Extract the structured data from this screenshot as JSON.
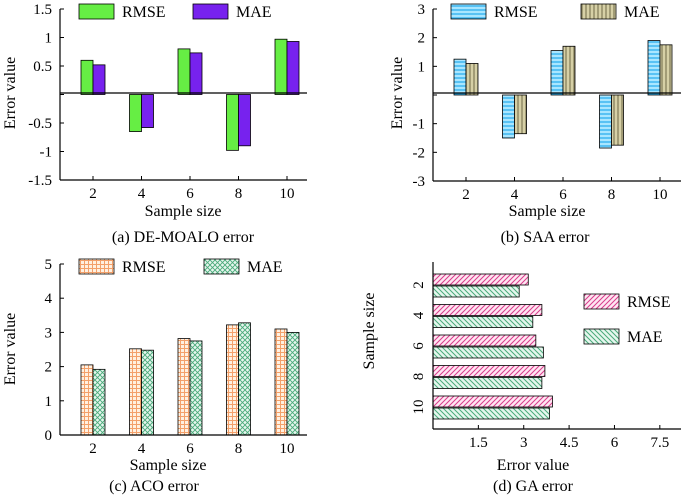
{
  "chart_data": [
    {
      "type": "bar",
      "caption": "(a) DE-MOALO error",
      "xlabel": "Sample size",
      "ylabel": "Error value",
      "categories": [
        "2",
        "4",
        "6",
        "8",
        "10"
      ],
      "ylim": [
        -1.5,
        1.5
      ],
      "yticks": [
        "1.5",
        "1",
        "0.5",
        "",
        "-0.5",
        "-1",
        "-1.5"
      ],
      "series": [
        {
          "name": "RMSE",
          "values": [
            0.6,
            -0.65,
            0.8,
            -0.98,
            0.97
          ]
        },
        {
          "name": "MAE",
          "values": [
            0.52,
            -0.58,
            0.73,
            -0.9,
            0.93
          ]
        }
      ],
      "legend": "top"
    },
    {
      "type": "bar",
      "caption": "(b) SAA error",
      "xlabel": "Sample size",
      "ylabel": "Error value",
      "categories": [
        "2",
        "4",
        "6",
        "8",
        "10"
      ],
      "ylim": [
        -3,
        3
      ],
      "yticks": [
        "3",
        "2",
        "1",
        "",
        "-1",
        "-2",
        "-3"
      ],
      "series": [
        {
          "name": "RMSE",
          "values": [
            1.25,
            -1.5,
            1.55,
            -1.85,
            1.9
          ]
        },
        {
          "name": "MAE",
          "values": [
            1.1,
            -1.35,
            1.7,
            -1.75,
            1.75
          ]
        }
      ],
      "legend": "top"
    },
    {
      "type": "bar",
      "caption": "(c) ACO error",
      "xlabel": "Sample size",
      "ylabel": "Error value",
      "categories": [
        "2",
        "4",
        "6",
        "8",
        "10"
      ],
      "ylim": [
        0,
        5
      ],
      "yticks": [
        "5",
        "4",
        "3",
        "2",
        "1",
        "0"
      ],
      "series": [
        {
          "name": "RMSE",
          "values": [
            2.05,
            2.52,
            2.82,
            3.22,
            3.1
          ]
        },
        {
          "name": "MAE",
          "values": [
            1.92,
            2.48,
            2.75,
            3.28,
            3.0
          ]
        }
      ],
      "legend": "top"
    },
    {
      "type": "bar",
      "orientation": "horizontal",
      "caption": "(d) GA error",
      "xlabel": "Error value",
      "ylabel": "Sample size",
      "categories": [
        "2",
        "4",
        "6",
        "8",
        "10"
      ],
      "xlim": [
        0,
        8.2
      ],
      "xticks": [
        "1.5",
        "3",
        "4.5",
        "6",
        "7.5"
      ],
      "series": [
        {
          "name": "RMSE",
          "values": [
            3.15,
            3.6,
            3.4,
            3.7,
            3.95
          ]
        },
        {
          "name": "MAE",
          "values": [
            2.85,
            3.3,
            3.65,
            3.6,
            3.85
          ]
        }
      ],
      "legend": "right"
    }
  ],
  "colors": {
    "a_rmse": "#66ee44",
    "a_mae": "#7722ee",
    "b_rmse_fill": "#a9e6ff",
    "b_rmse_line": "#22aaee",
    "b_mae_fill": "#d6d0a6",
    "b_mae_line": "#7f7a55",
    "c_rmse_fill": "#fff0e0",
    "c_rmse_line": "#f3a06a",
    "c_mae_fill": "#e6f6ee",
    "c_mae_line": "#4aaa7a",
    "d_rmse_fill": "#ffe6f2",
    "d_rmse_line": "#d83c8c",
    "d_mae_fill": "#e6f6ee",
    "d_mae_line": "#4aaa7a"
  }
}
